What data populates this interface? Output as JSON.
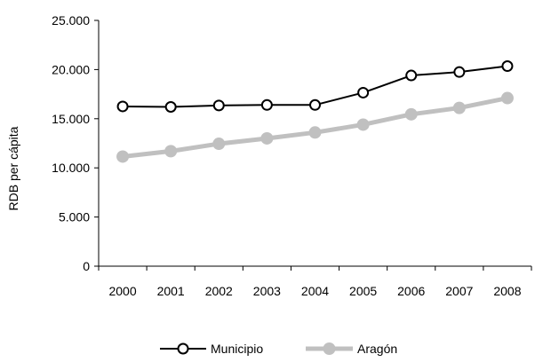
{
  "chart_data": {
    "type": "line",
    "title": "",
    "xlabel": "",
    "ylabel": "RDB per cápita",
    "categories": [
      "2000",
      "2001",
      "2002",
      "2003",
      "2004",
      "2005",
      "2006",
      "2007",
      "2008"
    ],
    "ylim": [
      0,
      25000
    ],
    "yticks": [
      0,
      5000,
      10000,
      15000,
      20000,
      25000
    ],
    "ytick_labels": [
      "0",
      "5.000",
      "10.000",
      "15.000",
      "20.000",
      "25.000"
    ],
    "grid": false,
    "legend_position": "bottom",
    "series": [
      {
        "name": "Municipio",
        "values": [
          16250,
          16200,
          16350,
          16400,
          16400,
          17650,
          19400,
          19750,
          20350
        ],
        "color": "#000000",
        "marker": "open-circle"
      },
      {
        "name": "Aragón",
        "values": [
          11150,
          11700,
          12450,
          13000,
          13600,
          14400,
          15450,
          16100,
          17100
        ],
        "color": "#c0c0c0",
        "marker": "filled-circle"
      }
    ]
  }
}
